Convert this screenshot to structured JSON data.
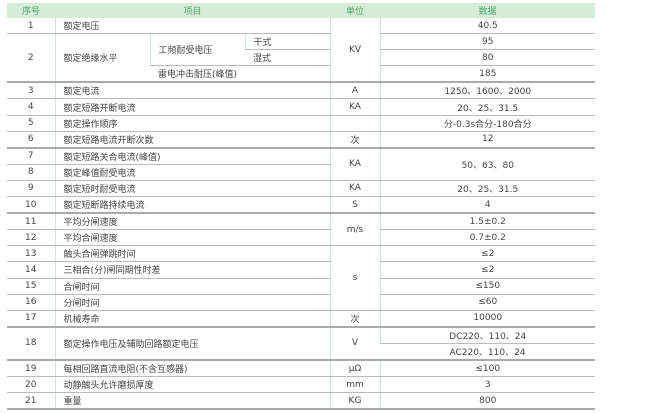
{
  "header": {
    "seq": "序号",
    "item": "项目",
    "unit": "单位",
    "data": "数据"
  },
  "rows": {
    "r1": {
      "no": "1",
      "item": "额定电压",
      "unit": "KV",
      "val": "40.5"
    },
    "r2": {
      "no": "2",
      "item": "额定绝缘水平",
      "sub1": "工频耐受电压",
      "dry": "干式",
      "wet": "湿式",
      "sub2": "雷电冲击耐压(峰值)",
      "v_dry": "95",
      "v_wet": "80",
      "v_imp": "185"
    },
    "r3": {
      "no": "3",
      "item": "额定电流",
      "unit": "A",
      "val": "1250、1600、2000"
    },
    "r4": {
      "no": "4",
      "item": "额定短路开断电流",
      "unit": "KA",
      "val": "20、25、31.5"
    },
    "r5": {
      "no": "5",
      "item": "额定操作顺序",
      "val": "分-0.3s合分-180合分"
    },
    "r6": {
      "no": "6",
      "item": "额定短路电流开断次数",
      "unit": "次",
      "val": "12"
    },
    "r7": {
      "no": "7",
      "item": "额定短路关合电流(峰值)",
      "unit": "KA",
      "val": "50、63、80"
    },
    "r8": {
      "no": "8",
      "item": "额定峰值耐受电流"
    },
    "r9": {
      "no": "9",
      "item": "额定短时耐受电流",
      "unit": "KA",
      "val": "20、25、31.5"
    },
    "r10": {
      "no": "10",
      "item": "额定短断路持续电流",
      "unit": "S",
      "val": "4"
    },
    "r11": {
      "no": "11",
      "item": "平均分闸速度",
      "unit": "m/s",
      "val": "1.5±0.2"
    },
    "r12": {
      "no": "12",
      "item": "平均合闸速度",
      "val": "0.7±0.2"
    },
    "r13": {
      "no": "13",
      "item": "触头合闸弹跳时间",
      "unit": "s",
      "val": "≤2"
    },
    "r14": {
      "no": "14",
      "item": "三相合(分)闸同期性时差",
      "val": "≤2"
    },
    "r15": {
      "no": "15",
      "item": "合闸时间",
      "val": "≤150"
    },
    "r16": {
      "no": "16",
      "item": "分闸时间",
      "val": "≤60"
    },
    "r17": {
      "no": "17",
      "item": "机械寿命",
      "unit": "次",
      "val": "10000"
    },
    "r18": {
      "no": "18",
      "item": "额定操作电压及辅助回路额定电压",
      "unit": "V",
      "val1": "DC220、110、24",
      "val2": "AC220、110、24"
    },
    "r19": {
      "no": "19",
      "item": "每相回路直流电阻(不含互感器)",
      "unit": "μΩ",
      "val": "≤100"
    },
    "r20": {
      "no": "20",
      "item": "动静触头允许磨损厚度",
      "unit": "mm",
      "val": "3"
    },
    "r21": {
      "no": "21",
      "item": "重量",
      "unit": "KG",
      "val": "800"
    }
  }
}
